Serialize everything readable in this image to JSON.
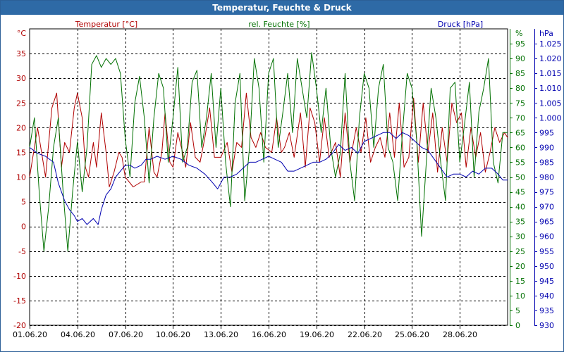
{
  "window": {
    "title": "Temperatur, Feuchte & Druck"
  },
  "colors": {
    "temp": "#b00000",
    "hum": "#007000",
    "press": "#0000b0",
    "titlebar": "#2e6aa6",
    "grid": "#000000"
  },
  "chart_data": {
    "type": "line",
    "title": "Temperatur, Feuchte & Druck",
    "x_tick_labels": [
      "01.06.20",
      "04.06.20",
      "07.06.20",
      "10.06.20",
      "13.06.20",
      "16.06.20",
      "19.06.20",
      "22.06.20",
      "25.06.20",
      "28.06.20"
    ],
    "x_range_days": [
      0,
      30
    ],
    "axes": {
      "temp": {
        "label": "Temperatur [°C]",
        "unit": "°C",
        "range": [
          -20,
          40
        ],
        "ticks": [
          -20,
          -15,
          -10,
          -5,
          0,
          5,
          10,
          15,
          20,
          25,
          30,
          35
        ]
      },
      "hum": {
        "label": "rel. Feuchte [%]",
        "unit": "%",
        "range": [
          0,
          100
        ],
        "ticks": [
          0,
          5,
          10,
          15,
          20,
          25,
          30,
          35,
          40,
          45,
          50,
          55,
          60,
          65,
          70,
          75,
          80,
          85,
          90,
          95
        ]
      },
      "press": {
        "label": "Druck [hPa]",
        "unit": "hPa",
        "range": [
          930,
          1030
        ],
        "ticks": [
          "930",
          "935",
          "940",
          "945",
          "950",
          "955",
          "960",
          "965",
          "970",
          "975",
          "980",
          "985",
          "990",
          "995",
          "1.000",
          "1.005",
          "1.010",
          "1.015",
          "1.020",
          "1.025"
        ]
      }
    },
    "series": [
      {
        "name": "Temperatur",
        "axis": "temp",
        "points": [
          [
            0,
            10
          ],
          [
            0.5,
            20
          ],
          [
            1,
            10
          ],
          [
            1.4,
            24
          ],
          [
            1.7,
            27
          ],
          [
            2,
            12
          ],
          [
            2.2,
            17
          ],
          [
            2.5,
            15
          ],
          [
            2.8,
            24
          ],
          [
            3,
            27
          ],
          [
            3.3,
            22
          ],
          [
            3.5,
            12
          ],
          [
            3.7,
            10
          ],
          [
            4,
            17
          ],
          [
            4.2,
            12
          ],
          [
            4.5,
            23
          ],
          [
            4.8,
            15
          ],
          [
            5,
            8
          ],
          [
            5.3,
            11
          ],
          [
            5.6,
            15
          ],
          [
            5.8,
            14
          ],
          [
            6,
            10
          ],
          [
            6.5,
            8
          ],
          [
            7,
            9
          ],
          [
            7.2,
            9
          ],
          [
            7.5,
            20
          ],
          [
            7.8,
            11
          ],
          [
            8,
            10
          ],
          [
            8.3,
            15
          ],
          [
            8.5,
            23
          ],
          [
            8.8,
            13
          ],
          [
            9,
            12
          ],
          [
            9.3,
            19
          ],
          [
            9.6,
            15
          ],
          [
            9.8,
            12
          ],
          [
            10.1,
            21
          ],
          [
            10.4,
            14
          ],
          [
            10.7,
            13
          ],
          [
            11,
            18
          ],
          [
            11.3,
            24
          ],
          [
            11.6,
            14
          ],
          [
            12,
            14
          ],
          [
            12.4,
            17
          ],
          [
            12.7,
            11
          ],
          [
            13,
            17
          ],
          [
            13.3,
            16
          ],
          [
            13.6,
            27
          ],
          [
            13.9,
            18
          ],
          [
            14.2,
            16
          ],
          [
            14.5,
            19
          ],
          [
            14.8,
            16
          ],
          [
            15.2,
            15
          ],
          [
            15.5,
            22
          ],
          [
            15.8,
            15
          ],
          [
            16,
            16
          ],
          [
            16.3,
            19
          ],
          [
            16.6,
            14
          ],
          [
            17,
            23
          ],
          [
            17.3,
            12
          ],
          [
            17.6,
            24
          ],
          [
            17.9,
            21
          ],
          [
            18.2,
            13
          ],
          [
            18.5,
            22
          ],
          [
            18.8,
            14
          ],
          [
            19.2,
            17
          ],
          [
            19.5,
            10
          ],
          [
            19.8,
            23
          ],
          [
            20.1,
            13
          ],
          [
            20.5,
            20
          ],
          [
            20.8,
            15
          ],
          [
            21.1,
            22
          ],
          [
            21.4,
            13
          ],
          [
            21.7,
            16
          ],
          [
            22,
            18
          ],
          [
            22.3,
            14
          ],
          [
            22.6,
            23
          ],
          [
            22.9,
            14
          ],
          [
            23.2,
            25
          ],
          [
            23.5,
            12
          ],
          [
            23.8,
            14
          ],
          [
            24.1,
            26
          ],
          [
            24.4,
            13
          ],
          [
            24.7,
            25
          ],
          [
            25,
            15
          ],
          [
            25.3,
            23
          ],
          [
            25.6,
            11
          ],
          [
            25.9,
            20
          ],
          [
            26.2,
            13
          ],
          [
            26.5,
            25
          ],
          [
            26.8,
            21
          ],
          [
            27.1,
            23
          ],
          [
            27.4,
            12
          ],
          [
            27.7,
            20
          ],
          [
            28,
            14
          ],
          [
            28.3,
            19
          ],
          [
            28.6,
            11
          ],
          [
            28.9,
            15
          ],
          [
            29.2,
            20
          ],
          [
            29.5,
            17
          ],
          [
            29.8,
            19
          ],
          [
            30,
            18
          ]
        ]
      },
      {
        "name": "rel. Feuchte",
        "axis": "hum",
        "points": [
          [
            0,
            60
          ],
          [
            0.3,
            70
          ],
          [
            0.6,
            45
          ],
          [
            0.9,
            25
          ],
          [
            1.2,
            40
          ],
          [
            1.5,
            60
          ],
          [
            1.8,
            70
          ],
          [
            2.1,
            45
          ],
          [
            2.4,
            25
          ],
          [
            2.7,
            45
          ],
          [
            3,
            62
          ],
          [
            3.3,
            45
          ],
          [
            3.6,
            60
          ],
          [
            3.9,
            88
          ],
          [
            4.2,
            91
          ],
          [
            4.5,
            87
          ],
          [
            4.8,
            90
          ],
          [
            5.1,
            88
          ],
          [
            5.4,
            90
          ],
          [
            5.7,
            85
          ],
          [
            6,
            63
          ],
          [
            6.3,
            50
          ],
          [
            6.6,
            75
          ],
          [
            6.9,
            84
          ],
          [
            7.2,
            70
          ],
          [
            7.5,
            48
          ],
          [
            7.8,
            70
          ],
          [
            8.1,
            85
          ],
          [
            8.4,
            80
          ],
          [
            8.7,
            55
          ],
          [
            9,
            70
          ],
          [
            9.3,
            87
          ],
          [
            9.6,
            55
          ],
          [
            9.9,
            60
          ],
          [
            10.2,
            82
          ],
          [
            10.5,
            86
          ],
          [
            10.8,
            60
          ],
          [
            11.1,
            70
          ],
          [
            11.4,
            85
          ],
          [
            11.7,
            60
          ],
          [
            12,
            80
          ],
          [
            12.3,
            55
          ],
          [
            12.6,
            40
          ],
          [
            12.9,
            75
          ],
          [
            13.2,
            85
          ],
          [
            13.5,
            42
          ],
          [
            13.8,
            60
          ],
          [
            14.1,
            90
          ],
          [
            14.4,
            80
          ],
          [
            14.7,
            55
          ],
          [
            15,
            85
          ],
          [
            15.3,
            90
          ],
          [
            15.6,
            60
          ],
          [
            15.9,
            72
          ],
          [
            16.2,
            85
          ],
          [
            16.5,
            65
          ],
          [
            16.8,
            90
          ],
          [
            17.1,
            80
          ],
          [
            17.4,
            70
          ],
          [
            17.7,
            92
          ],
          [
            18,
            80
          ],
          [
            18.3,
            65
          ],
          [
            18.6,
            80
          ],
          [
            18.9,
            60
          ],
          [
            19.2,
            50
          ],
          [
            19.5,
            58
          ],
          [
            19.8,
            85
          ],
          [
            20.1,
            55
          ],
          [
            20.4,
            42
          ],
          [
            20.7,
            70
          ],
          [
            21,
            85
          ],
          [
            21.3,
            80
          ],
          [
            21.6,
            60
          ],
          [
            21.9,
            80
          ],
          [
            22.2,
            88
          ],
          [
            22.5,
            60
          ],
          [
            22.8,
            55
          ],
          [
            23.1,
            42
          ],
          [
            23.4,
            65
          ],
          [
            23.7,
            85
          ],
          [
            24,
            80
          ],
          [
            24.3,
            62
          ],
          [
            24.6,
            30
          ],
          [
            24.9,
            55
          ],
          [
            25.2,
            80
          ],
          [
            25.5,
            70
          ],
          [
            25.8,
            55
          ],
          [
            26.1,
            42
          ],
          [
            26.4,
            80
          ],
          [
            26.7,
            82
          ],
          [
            27,
            55
          ],
          [
            27.3,
            68
          ],
          [
            27.6,
            82
          ],
          [
            27.9,
            50
          ],
          [
            28.2,
            72
          ],
          [
            28.5,
            80
          ],
          [
            28.8,
            90
          ],
          [
            29.1,
            55
          ],
          [
            29.4,
            48
          ],
          [
            29.7,
            65
          ],
          [
            30,
            65
          ]
        ]
      },
      {
        "name": "Druck",
        "axis": "press",
        "points": [
          [
            0,
            990
          ],
          [
            0.5,
            988
          ],
          [
            1,
            987
          ],
          [
            1.5,
            985
          ],
          [
            1.8,
            978
          ],
          [
            2.2,
            972
          ],
          [
            2.5,
            969
          ],
          [
            2.8,
            967
          ],
          [
            3,
            965
          ],
          [
            3.3,
            966
          ],
          [
            3.6,
            964
          ],
          [
            4,
            966
          ],
          [
            4.3,
            964
          ],
          [
            4.5,
            969
          ],
          [
            4.8,
            974
          ],
          [
            5.1,
            976
          ],
          [
            5.4,
            980
          ],
          [
            5.7,
            982
          ],
          [
            6,
            984
          ],
          [
            6.3,
            984
          ],
          [
            6.6,
            983
          ],
          [
            7,
            984
          ],
          [
            7.3,
            986
          ],
          [
            7.6,
            986
          ],
          [
            8,
            987
          ],
          [
            8.5,
            986
          ],
          [
            9,
            987
          ],
          [
            9.5,
            986
          ],
          [
            10,
            984
          ],
          [
            10.5,
            983
          ],
          [
            11,
            981
          ],
          [
            11.5,
            978
          ],
          [
            11.8,
            976
          ],
          [
            12.2,
            980
          ],
          [
            12.6,
            980
          ],
          [
            13,
            981
          ],
          [
            13.4,
            983
          ],
          [
            13.8,
            985
          ],
          [
            14.2,
            985
          ],
          [
            14.6,
            986
          ],
          [
            15,
            987
          ],
          [
            15.4,
            986
          ],
          [
            15.8,
            985
          ],
          [
            16.2,
            982
          ],
          [
            16.6,
            982
          ],
          [
            17,
            983
          ],
          [
            17.4,
            984
          ],
          [
            17.8,
            985
          ],
          [
            18.2,
            985
          ],
          [
            18.6,
            986
          ],
          [
            19,
            988
          ],
          [
            19.4,
            991
          ],
          [
            19.8,
            989
          ],
          [
            20.2,
            990
          ],
          [
            20.6,
            988
          ],
          [
            21,
            992
          ],
          [
            21.4,
            993
          ],
          [
            21.8,
            994
          ],
          [
            22.2,
            995
          ],
          [
            22.6,
            995
          ],
          [
            23,
            993
          ],
          [
            23.4,
            995
          ],
          [
            23.8,
            994
          ],
          [
            24.2,
            992
          ],
          [
            24.6,
            990
          ],
          [
            25,
            989
          ],
          [
            25.4,
            986
          ],
          [
            25.8,
            983
          ],
          [
            26.2,
            980
          ],
          [
            26.6,
            981
          ],
          [
            27,
            981
          ],
          [
            27.4,
            980
          ],
          [
            27.8,
            982
          ],
          [
            28.2,
            981
          ],
          [
            28.6,
            983
          ],
          [
            29,
            983
          ],
          [
            29.4,
            981
          ],
          [
            29.7,
            979
          ],
          [
            30,
            979
          ]
        ]
      }
    ]
  }
}
